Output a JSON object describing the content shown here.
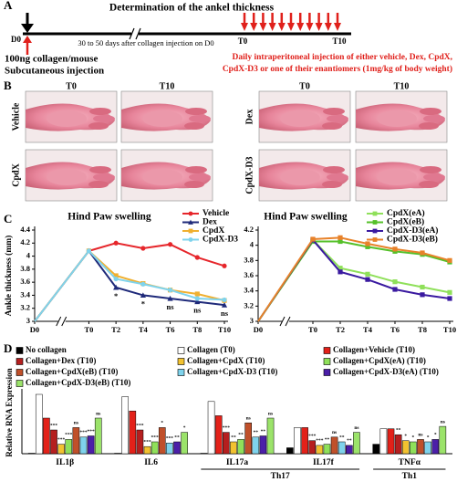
{
  "panel_a": {
    "label": "A",
    "title": "Determination of the ankel thickness",
    "start": "D0",
    "interval": "30 to 50 days after collagen injection on D0",
    "first_day": "T0",
    "last_day": "T10",
    "injection": [
      "100ng collagen/mouse",
      "Subcutaneous injection"
    ],
    "treatment": [
      "Daily intraperitoneal injection of  either vehicle, Dex, CpdX,",
      "CpdX-D3 or one of their enantiomers (1mg/kg of body weight)"
    ]
  },
  "panel_b": {
    "label": "B",
    "columns": [
      "T0",
      "T10",
      "T0",
      "T10"
    ],
    "rows": [
      "Vehicle",
      "CpdX",
      "Dex",
      "CpdX-D3"
    ]
  },
  "chart_data": [
    {
      "type": "line",
      "panel": "C",
      "title": "Hind Paw swelling",
      "ylabel": "Ankle thickness (mm)",
      "categories": [
        "D0",
        "T0",
        "T2",
        "T4",
        "T6",
        "T8",
        "T10"
      ],
      "ylim": [
        3,
        4.4
      ],
      "yticks": [
        3,
        3.2,
        3.4,
        3.6,
        3.8,
        4,
        4.2,
        4.4
      ],
      "series": [
        {
          "name": "Vehicle",
          "color": "#e6262b",
          "marker": "circle",
          "values": [
            3,
            4.08,
            4.2,
            4.12,
            4.18,
            3.98,
            3.85
          ]
        },
        {
          "name": "Dex",
          "color": "#1f2a7a",
          "marker": "triangle",
          "values": [
            3,
            4.08,
            3.52,
            3.4,
            3.35,
            3.3,
            3.25
          ]
        },
        {
          "name": "CpdX",
          "color": "#f0b030",
          "marker": "square",
          "values": [
            3,
            4.08,
            3.7,
            3.58,
            3.48,
            3.42,
            3.32
          ]
        },
        {
          "name": "CpdX-D3",
          "color": "#7fd3ec",
          "marker": "circle",
          "values": [
            3,
            4.08,
            3.65,
            3.57,
            3.48,
            3.35,
            3.33
          ]
        }
      ],
      "annotations": [
        {
          "text": "*",
          "category": "T2"
        },
        {
          "text": "*",
          "category": "T4"
        },
        {
          "text": "ns",
          "category": "T6"
        },
        {
          "text": "ns",
          "category": "T8"
        },
        {
          "text": "ns",
          "category": "T10"
        }
      ]
    },
    {
      "type": "line",
      "title": "Hind Paw swelling",
      "categories": [
        "D0",
        "T0",
        "T2",
        "T4",
        "T6",
        "T8",
        "T10"
      ],
      "ylim": [
        3,
        4.2
      ],
      "yticks": [
        3,
        3.2,
        3.4,
        3.6,
        3.8,
        4,
        4.2
      ],
      "series": [
        {
          "name": "CpdX(eA)",
          "color": "#8fe05a",
          "marker": "square",
          "values": [
            3,
            4.07,
            3.7,
            3.62,
            3.52,
            3.45,
            3.38
          ]
        },
        {
          "name": "CpdX(eB)",
          "color": "#55c02a",
          "marker": "square",
          "values": [
            3,
            4.05,
            4.05,
            3.98,
            3.92,
            3.88,
            3.78
          ]
        },
        {
          "name": "CpdX-D3(eA)",
          "color": "#3a1aa0",
          "marker": "square",
          "values": [
            3,
            4.07,
            3.65,
            3.55,
            3.42,
            3.35,
            3.3
          ]
        },
        {
          "name": "CpdX-D3(eB)",
          "color": "#e8822a",
          "marker": "square",
          "values": [
            3,
            4.08,
            4.1,
            4.02,
            3.95,
            3.9,
            3.8
          ]
        }
      ]
    },
    {
      "type": "bar",
      "panel": "D",
      "ylabel": "Relative RNA Expression",
      "categories": [
        "IL1β",
        "IL6",
        "IL17a",
        "IL17f",
        "TNFα"
      ],
      "groups": [
        {
          "label": "Th17",
          "categories": [
            "IL17a",
            "IL17f"
          ]
        },
        {
          "label": "Th1",
          "categories": [
            "TNFα"
          ]
        }
      ],
      "series": [
        {
          "name": "No collagen",
          "color": "#000000",
          "values": [
            0.02,
            0.02,
            0.02,
            0.25,
            0.4
          ]
        },
        {
          "name": "Collagen (T0)",
          "color": "#ffffff",
          "values": [
            2.5,
            2.4,
            2.2,
            1.1,
            1.05
          ]
        },
        {
          "name": "Collagen+Vehicle (T10)",
          "color": "#e32119",
          "values": [
            1.5,
            1.8,
            1.6,
            1.1,
            1.05
          ]
        },
        {
          "name": "Collagen+Dex (T10)",
          "color": "#b51f1f",
          "values": [
            1.0,
            1.0,
            0.9,
            0.55,
            0.8
          ],
          "significance": [
            "***",
            "***",
            "***",
            "***",
            "**"
          ]
        },
        {
          "name": "Collagen+CpdX (T10)",
          "color": "#f2c230",
          "values": [
            0.4,
            0.3,
            0.5,
            0.35,
            0.55
          ],
          "significance": [
            "***",
            "***",
            "**",
            "***",
            "*"
          ]
        },
        {
          "name": "Collagen+CpdX(eA) (T10)",
          "color": "#8fe05a",
          "values": [
            0.6,
            0.5,
            0.6,
            0.4,
            0.5
          ],
          "significance": [
            "***",
            "***",
            "**",
            "**",
            "*"
          ]
        },
        {
          "name": "Collagen+CpdX(eB) (T10)",
          "color": "#c0502a",
          "values": [
            1.1,
            1.1,
            1.3,
            0.7,
            0.6
          ],
          "significance": [
            "ns",
            "*",
            "ns",
            "ns",
            "ns"
          ]
        },
        {
          "name": "Collagen+CpdX-D3 (T10)",
          "color": "#7fd3ec",
          "values": [
            0.7,
            0.45,
            0.7,
            0.5,
            0.5
          ],
          "significance": [
            "***",
            "***",
            "**",
            "**",
            "*"
          ]
        },
        {
          "name": "Collagen+CpdX-D3(eA) (T10)",
          "color": "#4b1fa8",
          "values": [
            0.75,
            0.5,
            0.75,
            0.35,
            0.6
          ],
          "significance": [
            "***",
            "**",
            "**",
            "**",
            "*"
          ]
        },
        {
          "name": "Collagen+CpdX-D3(eB) (T10)",
          "color": "#9be36a",
          "values": [
            1.5,
            0.9,
            1.5,
            0.9,
            1.15
          ],
          "significance": [
            "ns",
            "*",
            "ns",
            "ns",
            "ns"
          ]
        }
      ]
    }
  ]
}
